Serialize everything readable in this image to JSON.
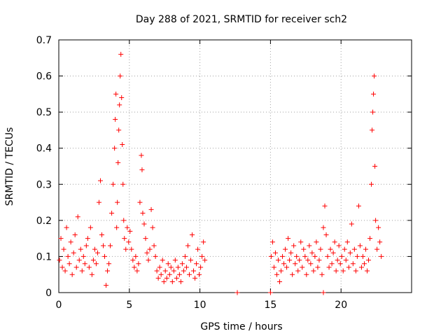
{
  "chart_data": {
    "type": "scatter",
    "title": "Day 288 of 2021, SRMTID for receiver sch2",
    "xlabel": "GPS time / hours",
    "ylabel": "SRMTID / TECUs",
    "xlim": [
      0,
      25
    ],
    "ylim": [
      0,
      0.7
    ],
    "xticks": [
      0,
      5,
      10,
      15,
      20
    ],
    "xtick_labels": [
      "0",
      "5",
      "10",
      "15",
      "20"
    ],
    "yticks": [
      0,
      0.1,
      0.2,
      0.3,
      0.4,
      0.5,
      0.6,
      0.7
    ],
    "ytick_labels": [
      "0",
      "0.1",
      "0.2",
      "0.3",
      "0.4",
      "0.5",
      "0.6",
      "0.7"
    ],
    "grid": true,
    "marker": "+",
    "color": "#ff0000",
    "series": [
      {
        "name": "SRMTID sch2",
        "points": [
          [
            0.05,
            0.09
          ],
          [
            0.15,
            0.15
          ],
          [
            0.25,
            0.07
          ],
          [
            0.35,
            0.12
          ],
          [
            0.45,
            0.06
          ],
          [
            0.55,
            0.18
          ],
          [
            0.65,
            0.1
          ],
          [
            0.75,
            0.08
          ],
          [
            0.85,
            0.14
          ],
          [
            0.95,
            0.05
          ],
          [
            1.05,
            0.11
          ],
          [
            1.15,
            0.16
          ],
          [
            1.25,
            0.07
          ],
          [
            1.35,
            0.21
          ],
          [
            1.45,
            0.09
          ],
          [
            1.55,
            0.12
          ],
          [
            1.65,
            0.06
          ],
          [
            1.75,
            0.1
          ],
          [
            1.85,
            0.08
          ],
          [
            1.95,
            0.13
          ],
          [
            2.05,
            0.15
          ],
          [
            2.15,
            0.07
          ],
          [
            2.25,
            0.18
          ],
          [
            2.35,
            0.05
          ],
          [
            2.45,
            0.09
          ],
          [
            2.55,
            0.12
          ],
          [
            2.65,
            0.08
          ],
          [
            2.75,
            0.11
          ],
          [
            2.85,
            0.25
          ],
          [
            2.95,
            0.31
          ],
          [
            3.05,
            0.16
          ],
          [
            3.15,
            0.13
          ],
          [
            3.25,
            0.1
          ],
          [
            3.35,
            0.02
          ],
          [
            3.45,
            0.06
          ],
          [
            3.55,
            0.08
          ],
          [
            3.65,
            0.13
          ],
          [
            3.75,
            0.22
          ],
          [
            3.85,
            0.3
          ],
          [
            3.95,
            0.4
          ],
          [
            4.0,
            0.48
          ],
          [
            4.05,
            0.55
          ],
          [
            4.1,
            0.18
          ],
          [
            4.15,
            0.25
          ],
          [
            4.2,
            0.36
          ],
          [
            4.25,
            0.45
          ],
          [
            4.3,
            0.52
          ],
          [
            4.35,
            0.6
          ],
          [
            4.4,
            0.66
          ],
          [
            4.45,
            0.54
          ],
          [
            4.5,
            0.41
          ],
          [
            4.55,
            0.3
          ],
          [
            4.6,
            0.2
          ],
          [
            4.65,
            0.15
          ],
          [
            4.75,
            0.12
          ],
          [
            4.85,
            0.18
          ],
          [
            4.95,
            0.14
          ],
          [
            5.05,
            0.17
          ],
          [
            5.15,
            0.12
          ],
          [
            5.25,
            0.09
          ],
          [
            5.35,
            0.07
          ],
          [
            5.45,
            0.1
          ],
          [
            5.55,
            0.06
          ],
          [
            5.65,
            0.08
          ],
          [
            5.75,
            0.25
          ],
          [
            5.85,
            0.38
          ],
          [
            5.9,
            0.34
          ],
          [
            5.95,
            0.22
          ],
          [
            6.05,
            0.19
          ],
          [
            6.15,
            0.15
          ],
          [
            6.25,
            0.11
          ],
          [
            6.35,
            0.09
          ],
          [
            6.45,
            0.12
          ],
          [
            6.55,
            0.23
          ],
          [
            6.65,
            0.18
          ],
          [
            6.75,
            0.13
          ],
          [
            6.85,
            0.1
          ],
          [
            6.95,
            0.06
          ],
          [
            7.05,
            0.04
          ],
          [
            7.15,
            0.07
          ],
          [
            7.25,
            0.05
          ],
          [
            7.35,
            0.09
          ],
          [
            7.45,
            0.03
          ],
          [
            7.55,
            0.06
          ],
          [
            7.65,
            0.04
          ],
          [
            7.75,
            0.08
          ],
          [
            7.85,
            0.05
          ],
          [
            7.95,
            0.07
          ],
          [
            8.05,
            0.03
          ],
          [
            8.15,
            0.06
          ],
          [
            8.25,
            0.09
          ],
          [
            8.35,
            0.04
          ],
          [
            8.45,
            0.07
          ],
          [
            8.55,
            0.05
          ],
          [
            8.65,
            0.03
          ],
          [
            8.75,
            0.08
          ],
          [
            8.85,
            0.06
          ],
          [
            8.95,
            0.1
          ],
          [
            9.05,
            0.07
          ],
          [
            9.15,
            0.13
          ],
          [
            9.25,
            0.05
          ],
          [
            9.35,
            0.09
          ],
          [
            9.45,
            0.16
          ],
          [
            9.55,
            0.06
          ],
          [
            9.65,
            0.04
          ],
          [
            9.75,
            0.08
          ],
          [
            9.85,
            0.12
          ],
          [
            9.95,
            0.05
          ],
          [
            10.05,
            0.07
          ],
          [
            10.15,
            0.1
          ],
          [
            10.25,
            0.14
          ],
          [
            10.35,
            0.09
          ],
          [
            12.65,
            0.0
          ],
          [
            15.0,
            0.0
          ],
          [
            18.75,
            0.0
          ],
          [
            15.05,
            0.1
          ],
          [
            15.15,
            0.14
          ],
          [
            15.25,
            0.07
          ],
          [
            15.35,
            0.11
          ],
          [
            15.45,
            0.05
          ],
          [
            15.55,
            0.09
          ],
          [
            15.65,
            0.03
          ],
          [
            15.75,
            0.06
          ],
          [
            15.85,
            0.1
          ],
          [
            15.95,
            0.08
          ],
          [
            16.05,
            0.12
          ],
          [
            16.15,
            0.07
          ],
          [
            16.25,
            0.15
          ],
          [
            16.35,
            0.09
          ],
          [
            16.45,
            0.11
          ],
          [
            16.55,
            0.05
          ],
          [
            16.65,
            0.13
          ],
          [
            16.75,
            0.08
          ],
          [
            16.85,
            0.1
          ],
          [
            16.95,
            0.06
          ],
          [
            17.05,
            0.09
          ],
          [
            17.15,
            0.14
          ],
          [
            17.25,
            0.07
          ],
          [
            17.35,
            0.12
          ],
          [
            17.45,
            0.1
          ],
          [
            17.55,
            0.05
          ],
          [
            17.65,
            0.09
          ],
          [
            17.75,
            0.13
          ],
          [
            17.85,
            0.08
          ],
          [
            17.95,
            0.11
          ],
          [
            18.05,
            0.06
          ],
          [
            18.15,
            0.1
          ],
          [
            18.25,
            0.14
          ],
          [
            18.35,
            0.07
          ],
          [
            18.45,
            0.09
          ],
          [
            18.55,
            0.12
          ],
          [
            18.65,
            0.05
          ],
          [
            18.75,
            0.18
          ],
          [
            18.85,
            0.24
          ],
          [
            18.95,
            0.16
          ],
          [
            19.05,
            0.1
          ],
          [
            19.15,
            0.07
          ],
          [
            19.25,
            0.12
          ],
          [
            19.35,
            0.08
          ],
          [
            19.45,
            0.11
          ],
          [
            19.55,
            0.14
          ],
          [
            19.65,
            0.06
          ],
          [
            19.75,
            0.09
          ],
          [
            19.85,
            0.13
          ],
          [
            19.95,
            0.08
          ],
          [
            20.05,
            0.1
          ],
          [
            20.15,
            0.06
          ],
          [
            20.25,
            0.12
          ],
          [
            20.35,
            0.09
          ],
          [
            20.45,
            0.14
          ],
          [
            20.55,
            0.07
          ],
          [
            20.65,
            0.11
          ],
          [
            20.75,
            0.19
          ],
          [
            20.85,
            0.08
          ],
          [
            20.95,
            0.12
          ],
          [
            21.05,
            0.06
          ],
          [
            21.15,
            0.1
          ],
          [
            21.25,
            0.24
          ],
          [
            21.35,
            0.13
          ],
          [
            21.45,
            0.07
          ],
          [
            21.55,
            0.1
          ],
          [
            21.65,
            0.08
          ],
          [
            21.75,
            0.12
          ],
          [
            21.85,
            0.06
          ],
          [
            21.95,
            0.09
          ],
          [
            22.05,
            0.15
          ],
          [
            22.15,
            0.3
          ],
          [
            22.2,
            0.45
          ],
          [
            22.25,
            0.5
          ],
          [
            22.3,
            0.55
          ],
          [
            22.35,
            0.6
          ],
          [
            22.4,
            0.35
          ],
          [
            22.45,
            0.2
          ],
          [
            22.55,
            0.12
          ],
          [
            22.65,
            0.18
          ],
          [
            22.75,
            0.14
          ],
          [
            22.85,
            0.1
          ]
        ]
      }
    ]
  }
}
